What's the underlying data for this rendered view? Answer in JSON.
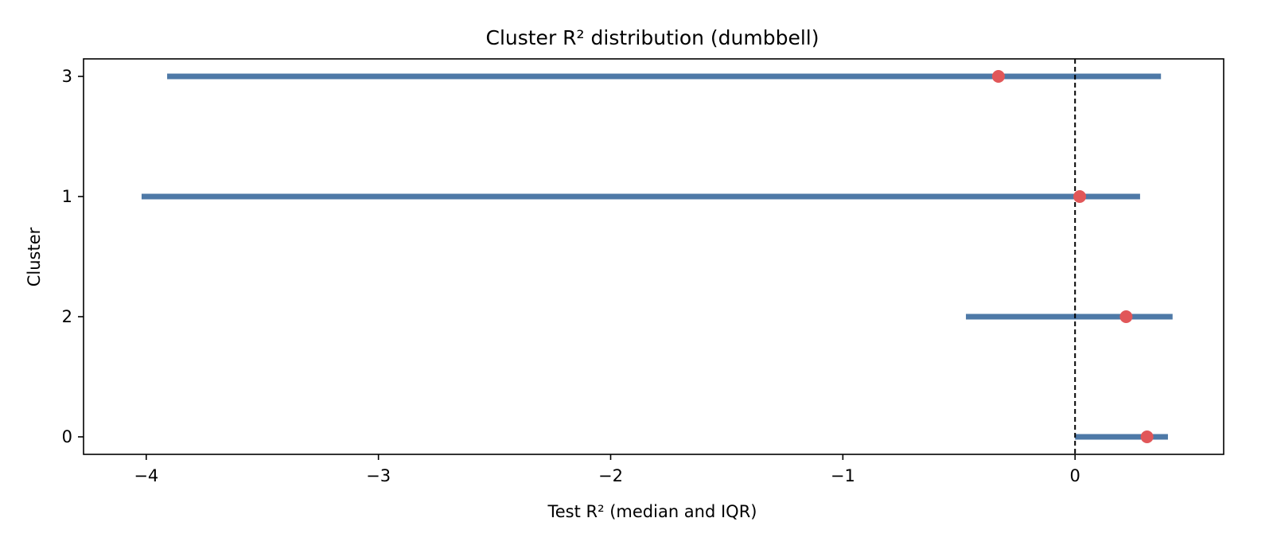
{
  "chart_data": {
    "type": "dumbbell",
    "title": "Cluster R² distribution (dumbbell)",
    "xlabel": "Test R² (median and IQR)",
    "ylabel": "Cluster",
    "xlim": [
      -4.27,
      0.64
    ],
    "x_ticks": [
      -4,
      -3,
      -2,
      -1,
      0
    ],
    "x_tick_labels": [
      "−4",
      "−3",
      "−2",
      "−1",
      "0"
    ],
    "categories": [
      "0",
      "2",
      "1",
      "3"
    ],
    "iqr_low": [
      0.0,
      -0.47,
      -4.02,
      -3.91
    ],
    "iqr_high": [
      0.4,
      0.42,
      0.28,
      0.37
    ],
    "median": [
      0.31,
      0.22,
      0.02,
      -0.33
    ],
    "reference_line_x": 0,
    "grid": false,
    "colors": {
      "range_bar": "#4e79a7",
      "median_dot": "#e15759",
      "reference_line": "#000000"
    }
  }
}
